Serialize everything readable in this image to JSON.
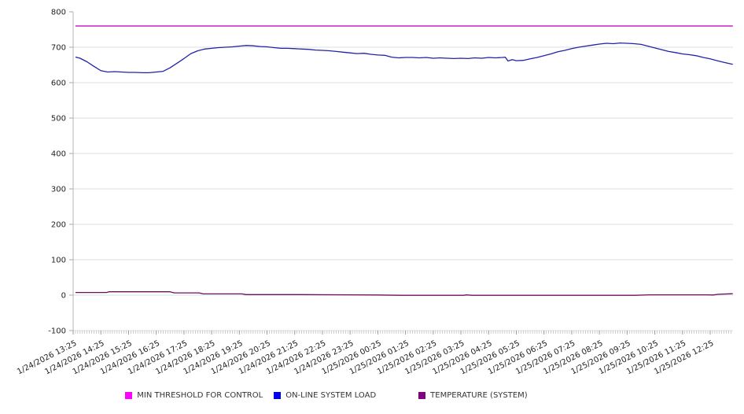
{
  "chart_data": {
    "type": "line",
    "title": "",
    "legend_position": "bottom",
    "grid": true,
    "x_axis": {
      "labels": [
        "1/24/2026 13:25",
        "1/24/2026 14:25",
        "1/24/2026 15:25",
        "1/24/2026 16:25",
        "1/24/2026 17:25",
        "1/24/2026 18:25",
        "1/24/2026 19:25",
        "1/24/2026 20:25",
        "1/24/2026 21:25",
        "1/24/2026 22:25",
        "1/24/2026 23:25",
        "1/25/2026 00:25",
        "1/25/2026 01:25",
        "1/25/2026 02:25",
        "1/25/2026 03:25",
        "1/25/2026 04:25",
        "1/25/2026 05:25",
        "1/25/2026 06:25",
        "1/25/2026 07:25",
        "1/25/2026 08:25",
        "1/25/2026 09:25",
        "1/25/2026 10:25",
        "1/25/2026 11:25",
        "1/25/2026 12:25"
      ],
      "minor_tick_minutes": 5,
      "hours_span": 23.8
    },
    "y_axis": {
      "min": -100,
      "max": 800,
      "tick_step": 100,
      "ticks": [
        800,
        700,
        600,
        500,
        400,
        300,
        200,
        100,
        0,
        -100
      ]
    },
    "series": [
      {
        "name": "MIN THRESHOLD FOR CONTROL",
        "color": "#cc22cc",
        "legend_color": "#ff00ff",
        "kind": "threshold",
        "value": 760,
        "t_start": 0.1,
        "t_end": 23.8
      },
      {
        "name": "ON-LINE SYSTEM LOAD",
        "color": "#2222aa",
        "legend_color": "#0000ee",
        "kind": "line",
        "points": [
          [
            0.1,
            672
          ],
          [
            0.25,
            669
          ],
          [
            0.5,
            659
          ],
          [
            0.75,
            646
          ],
          [
            1,
            634
          ],
          [
            1.25,
            630
          ],
          [
            1.5,
            631
          ],
          [
            1.75,
            630
          ],
          [
            2,
            629
          ],
          [
            2.25,
            629
          ],
          [
            2.5,
            628
          ],
          [
            2.75,
            628
          ],
          [
            3,
            630
          ],
          [
            3.25,
            632
          ],
          [
            3.5,
            642
          ],
          [
            3.75,
            655
          ],
          [
            4,
            668
          ],
          [
            4.25,
            682
          ],
          [
            4.5,
            690
          ],
          [
            4.75,
            695
          ],
          [
            5,
            697
          ],
          [
            5.25,
            699
          ],
          [
            5.5,
            700
          ],
          [
            5.75,
            701
          ],
          [
            6,
            703
          ],
          [
            6.25,
            705
          ],
          [
            6.5,
            704
          ],
          [
            6.75,
            702
          ],
          [
            7,
            701
          ],
          [
            7.25,
            699
          ],
          [
            7.5,
            697
          ],
          [
            7.75,
            697
          ],
          [
            8,
            696
          ],
          [
            8.25,
            695
          ],
          [
            8.5,
            694
          ],
          [
            8.75,
            692
          ],
          [
            9,
            691
          ],
          [
            9.25,
            690
          ],
          [
            9.5,
            688
          ],
          [
            9.75,
            686
          ],
          [
            10,
            684
          ],
          [
            10.25,
            682
          ],
          [
            10.5,
            683
          ],
          [
            10.75,
            680
          ],
          [
            11,
            678
          ],
          [
            11.25,
            677
          ],
          [
            11.5,
            672
          ],
          [
            11.75,
            670
          ],
          [
            12,
            671
          ],
          [
            12.25,
            671
          ],
          [
            12.5,
            670
          ],
          [
            12.75,
            671
          ],
          [
            13,
            669
          ],
          [
            13.25,
            670
          ],
          [
            13.5,
            669
          ],
          [
            13.75,
            668
          ],
          [
            14,
            669
          ],
          [
            14.25,
            668
          ],
          [
            14.5,
            670
          ],
          [
            14.75,
            669
          ],
          [
            15,
            671
          ],
          [
            15.25,
            670
          ],
          [
            15.5,
            671
          ],
          [
            15.6,
            672
          ],
          [
            15.7,
            661
          ],
          [
            15.85,
            665
          ],
          [
            16,
            662
          ],
          [
            16.25,
            663
          ],
          [
            16.5,
            667
          ],
          [
            16.75,
            671
          ],
          [
            17,
            676
          ],
          [
            17.25,
            681
          ],
          [
            17.5,
            687
          ],
          [
            17.75,
            691
          ],
          [
            18,
            696
          ],
          [
            18.25,
            700
          ],
          [
            18.5,
            703
          ],
          [
            18.75,
            706
          ],
          [
            19,
            709
          ],
          [
            19.25,
            711
          ],
          [
            19.5,
            710
          ],
          [
            19.75,
            712
          ],
          [
            20,
            711
          ],
          [
            20.25,
            710
          ],
          [
            20.5,
            708
          ],
          [
            20.75,
            703
          ],
          [
            21,
            698
          ],
          [
            21.25,
            693
          ],
          [
            21.5,
            688
          ],
          [
            21.75,
            685
          ],
          [
            22,
            681
          ],
          [
            22.25,
            679
          ],
          [
            22.5,
            676
          ],
          [
            22.75,
            671
          ],
          [
            23,
            667
          ],
          [
            23.25,
            662
          ],
          [
            23.5,
            657
          ],
          [
            23.8,
            652
          ]
        ]
      },
      {
        "name": "TEMPERATURE (SYSTEM)",
        "color": "#6a1060",
        "legend_color": "#800080",
        "kind": "line",
        "points": [
          [
            0.1,
            7.5
          ],
          [
            0.5,
            7.5
          ],
          [
            1.2,
            7.5
          ],
          [
            1.3,
            9.5
          ],
          [
            3.5,
            9.5
          ],
          [
            3.65,
            6.5
          ],
          [
            4.55,
            6.5
          ],
          [
            4.7,
            3.5
          ],
          [
            6.1,
            3.5
          ],
          [
            6.25,
            1.5
          ],
          [
            8,
            1.5
          ],
          [
            10,
            1
          ],
          [
            11,
            0.5
          ],
          [
            11.8,
            -0.5
          ],
          [
            14.1,
            -0.5
          ],
          [
            14.2,
            0.7
          ],
          [
            14.4,
            -0.5
          ],
          [
            18,
            -0.5
          ],
          [
            20.3,
            -0.5
          ],
          [
            20.8,
            1
          ],
          [
            22.9,
            1
          ],
          [
            23.1,
            0.5
          ],
          [
            23.3,
            2.5
          ],
          [
            23.8,
            4
          ]
        ]
      }
    ]
  }
}
